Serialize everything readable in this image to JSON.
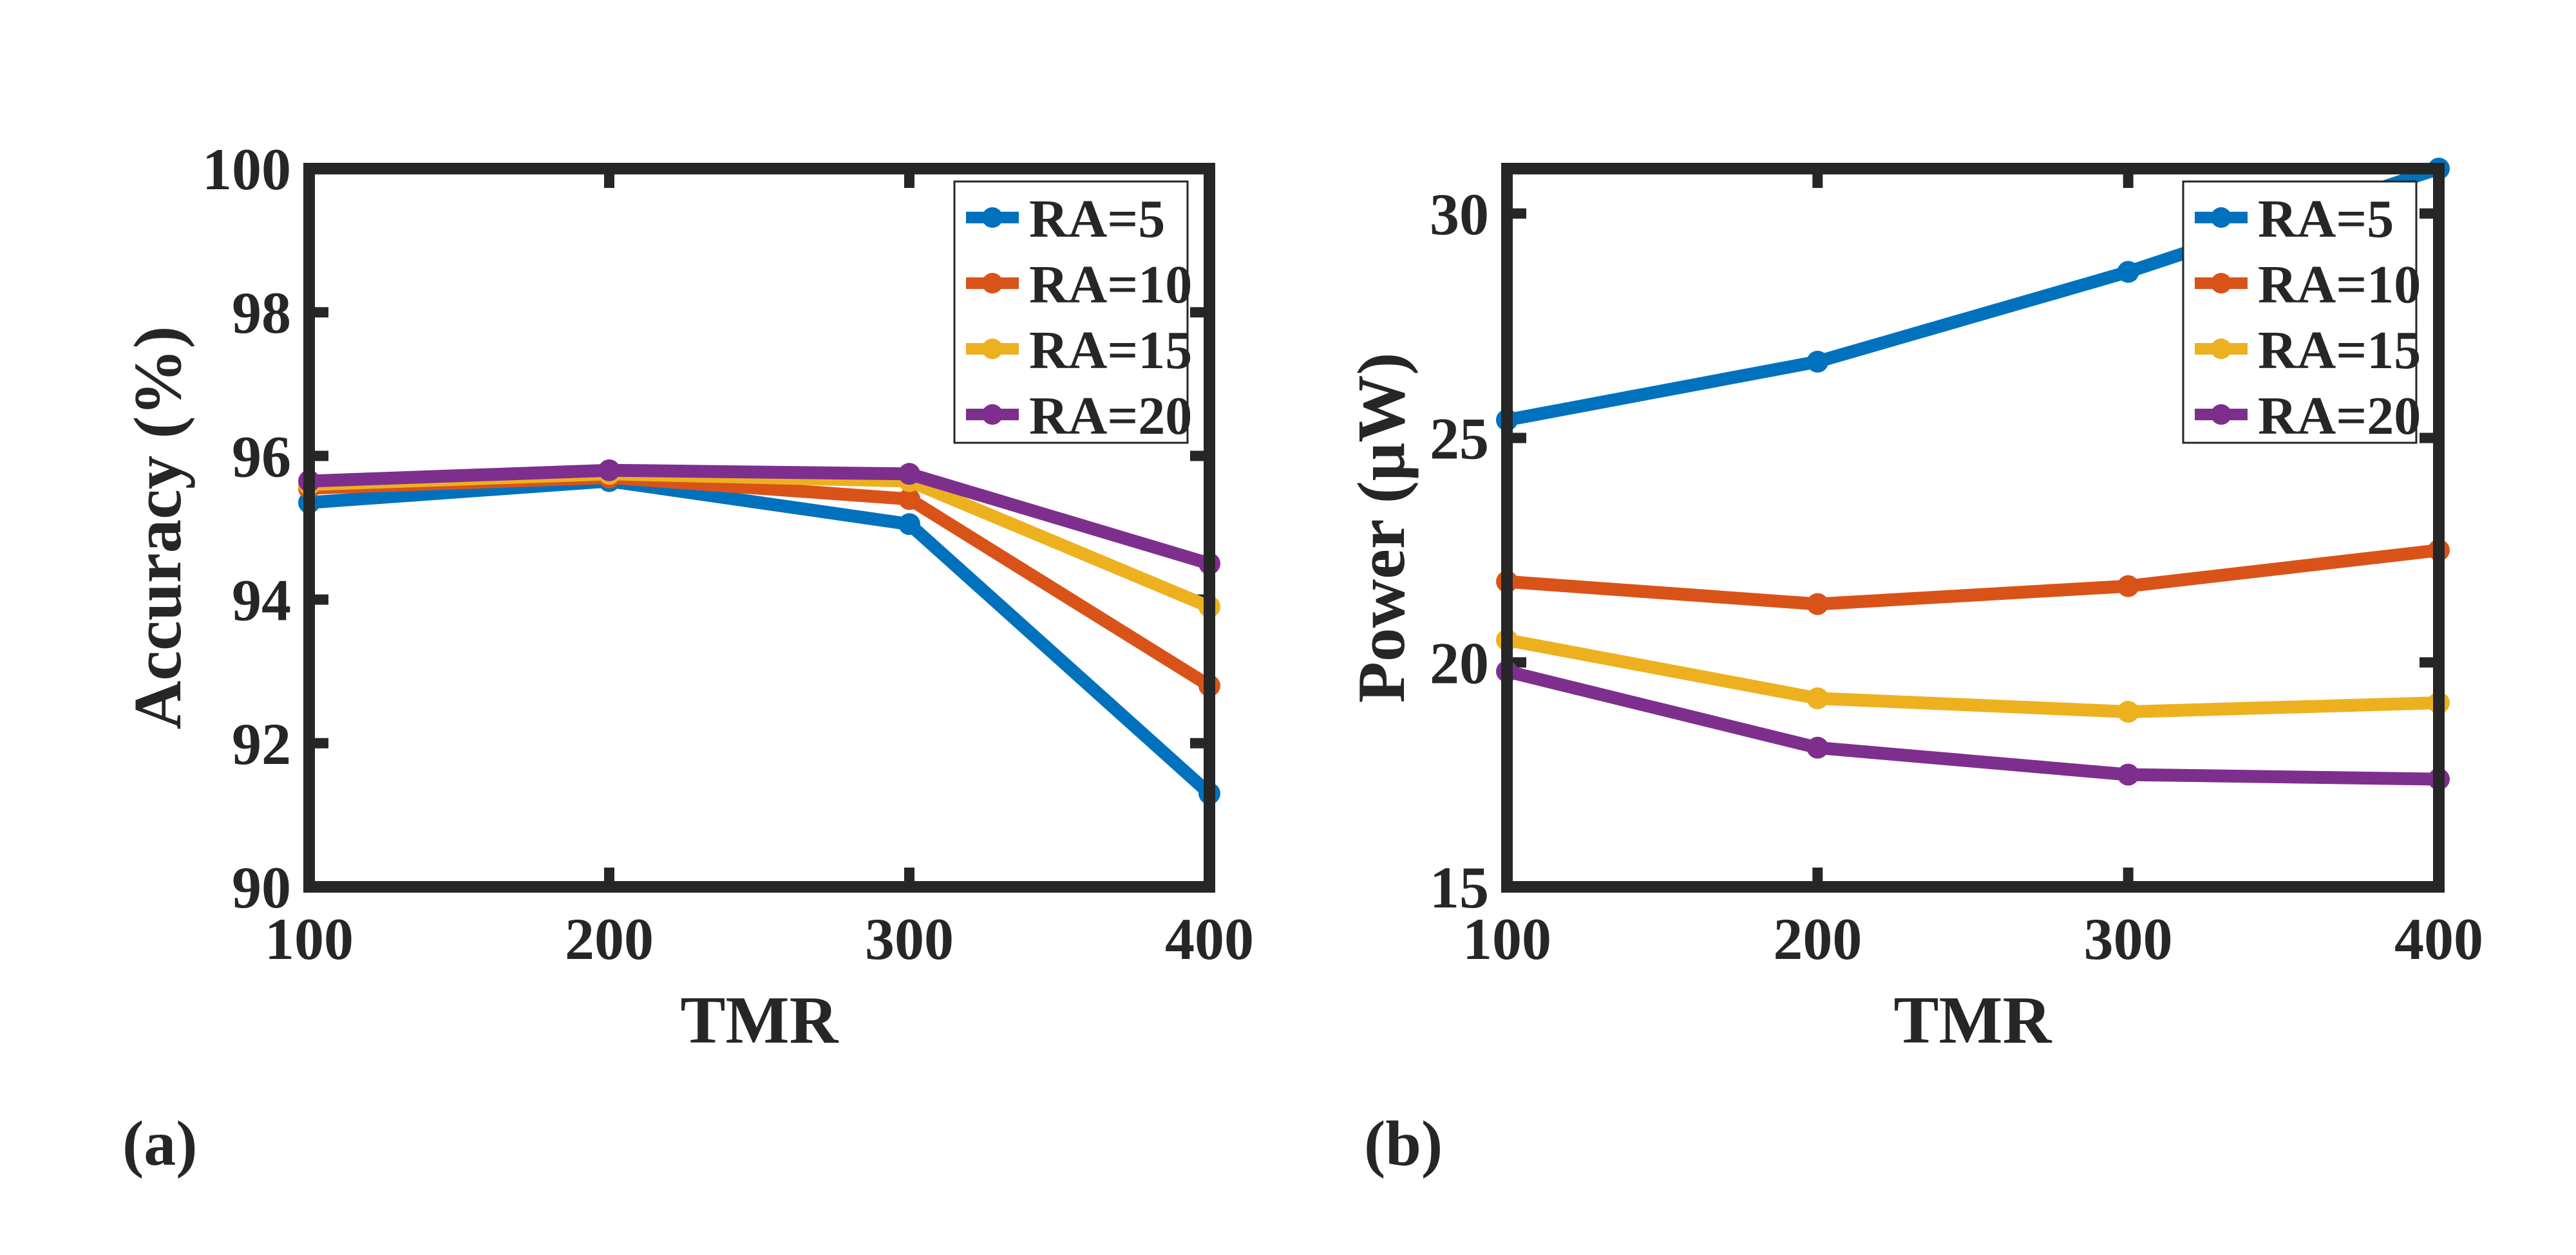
{
  "figure": {
    "panel_labels": [
      "(a)",
      "(b)"
    ]
  },
  "chart_data": [
    {
      "type": "line",
      "panel": "(a)",
      "title": "",
      "xlabel": "TMR",
      "ylabel": "Accuracy (%)",
      "xlim": [
        100,
        400
      ],
      "ylim": [
        90,
        100
      ],
      "xticks": [
        "100",
        "200",
        "300",
        "400"
      ],
      "yticks": [
        "90",
        "92",
        "94",
        "96",
        "98",
        "100"
      ],
      "x": [
        100,
        200,
        300,
        400
      ],
      "legend_position": "top-right",
      "series": [
        {
          "name": "RA=5",
          "color": "#0072BD",
          "values": [
            95.35,
            95.65,
            95.05,
            91.3
          ]
        },
        {
          "name": "RA=10",
          "color": "#D95319",
          "values": [
            95.55,
            95.7,
            95.4,
            92.8
          ]
        },
        {
          "name": "RA=15",
          "color": "#EDB120",
          "values": [
            95.6,
            95.75,
            95.65,
            93.9
          ]
        },
        {
          "name": "RA=20",
          "color": "#7E2F8E",
          "values": [
            95.65,
            95.8,
            95.75,
            94.5
          ]
        }
      ]
    },
    {
      "type": "line",
      "panel": "(b)",
      "title": "",
      "xlabel": "TMR",
      "ylabel": "Power (μW)",
      "xlim": [
        100,
        400
      ],
      "ylim": [
        15,
        31
      ],
      "xticks": [
        "100",
        "200",
        "300",
        "400"
      ],
      "yticks": [
        "15",
        "20",
        "25",
        "30"
      ],
      "x": [
        100,
        200,
        300,
        400
      ],
      "legend_position": "top-right",
      "series": [
        {
          "name": "RA=5",
          "color": "#0072BD",
          "values": [
            25.4,
            26.7,
            28.7,
            31.0
          ]
        },
        {
          "name": "RA=10",
          "color": "#D95319",
          "values": [
            21.8,
            21.3,
            21.7,
            22.5
          ]
        },
        {
          "name": "RA=15",
          "color": "#EDB120",
          "values": [
            20.5,
            19.2,
            18.9,
            19.1
          ]
        },
        {
          "name": "RA=20",
          "color": "#7E2F8E",
          "values": [
            19.8,
            18.1,
            17.5,
            17.4
          ]
        }
      ]
    }
  ]
}
